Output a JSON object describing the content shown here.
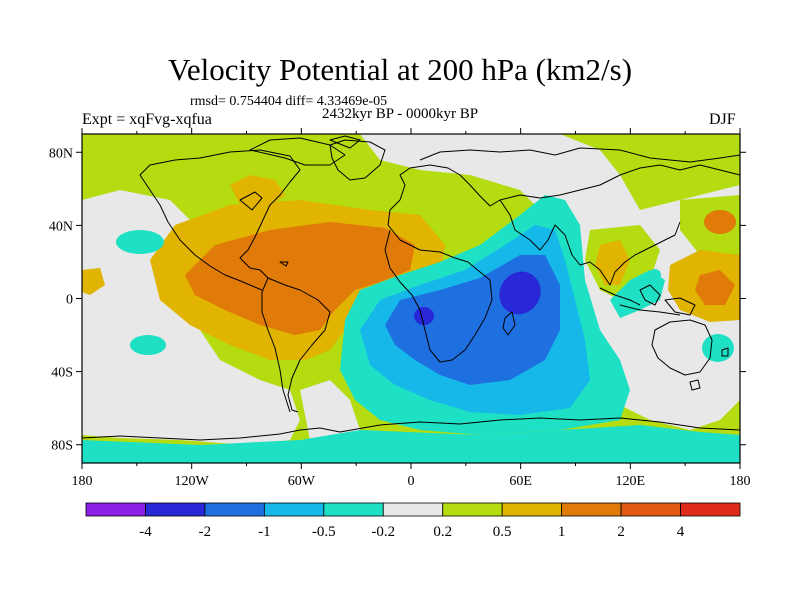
{
  "header": {
    "title": "Velocity Potential at 200 hPa (km2/s)",
    "stats": "rmsd= 0.754404 diff= 4.33469e-05",
    "experiment": "Expt = xqFvg-xqfua",
    "period": "2432kyr BP - 0000kyr BP",
    "season": "DJF"
  },
  "map": {
    "lat_labels": [
      "80N",
      "40N",
      "0",
      "40S",
      "80S"
    ],
    "lon_labels": [
      "180",
      "120W",
      "60W",
      "0",
      "60E",
      "120E",
      "180"
    ]
  },
  "colorbar": {
    "colors": [
      "#8c1fe6",
      "#2828d6",
      "#1e6fe0",
      "#16b8ea",
      "#1ee0c4",
      "#e8e8e8",
      "#b4dc10",
      "#e0b400",
      "#e07a08",
      "#e05a14",
      "#e02a1a"
    ],
    "labels": [
      "-4",
      "-2",
      "-1",
      "-0.5",
      "-0.2",
      "0.2",
      "0.5",
      "1",
      "2",
      "4"
    ]
  }
}
